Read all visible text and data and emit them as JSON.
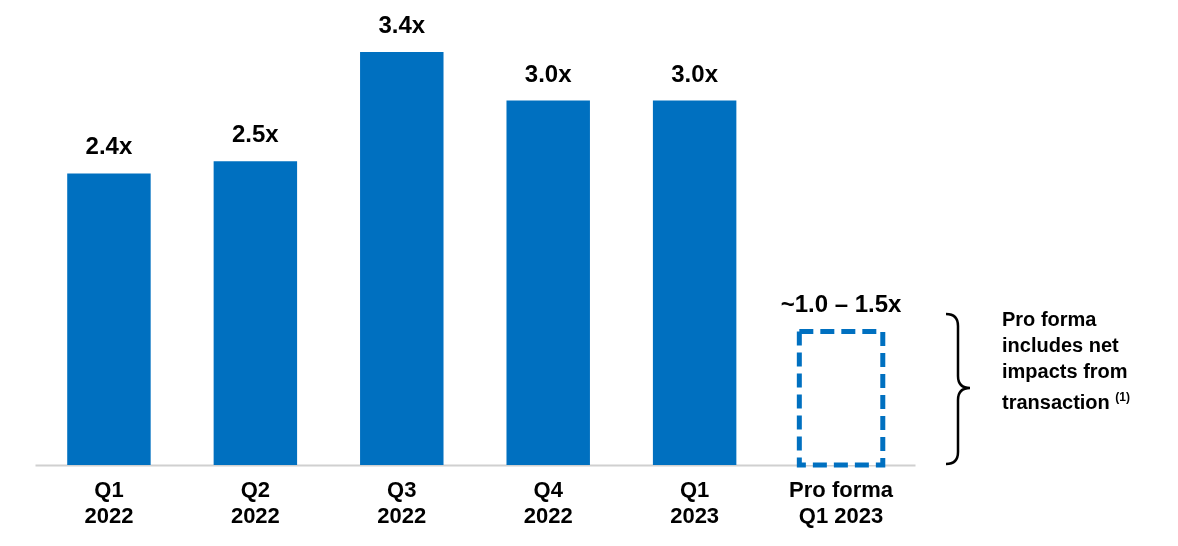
{
  "chart_data": {
    "type": "bar",
    "categories": [
      "Q1\n2022",
      "Q2\n2022",
      "Q3\n2022",
      "Q4\n2022",
      "Q1\n2023",
      "Pro forma\nQ1 2023"
    ],
    "series": [
      {
        "color": "#0070c0",
        "values": [
          2.4,
          2.5,
          3.4,
          3.0,
          3.0,
          null
        ],
        "value_labels": [
          "2.4x",
          "2.5x",
          "3.4x",
          "3.0x",
          "3.0x",
          null
        ]
      },
      {
        "color": "#0070c0",
        "line_style": "dashed",
        "values": [
          null,
          null,
          null,
          null,
          null,
          1.1
        ],
        "value_labels": [
          null,
          null,
          null,
          null,
          null,
          "~1.0 – 1.5x"
        ]
      }
    ],
    "annotations": [
      "Pro forma includes net impacts from transaction $^{(1)}$"
    ]
  }
}
